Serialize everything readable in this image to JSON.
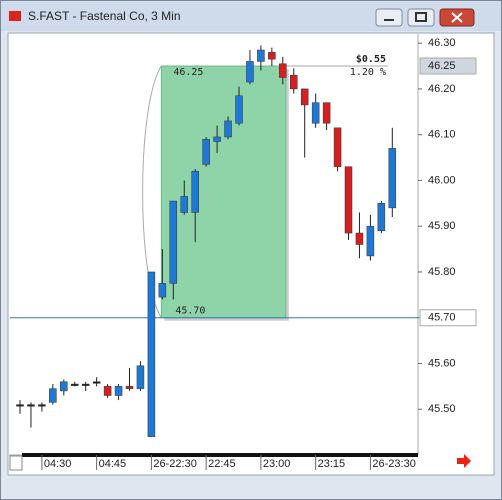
{
  "window": {
    "title": "S.FAST - Fastenal Co, 3 Min"
  },
  "chart_data": {
    "type": "candlestick",
    "categories": [
      null,
      null,
      "04:30",
      null,
      null,
      null,
      null,
      "04:45",
      null,
      null,
      null,
      null,
      "26-22:30",
      null,
      null,
      null,
      null,
      "22:45",
      null,
      null,
      null,
      null,
      "23:00",
      null,
      null,
      null,
      null,
      "23:15",
      null,
      null,
      null,
      null,
      "26-23:30",
      null,
      null
    ],
    "open": [
      45.51,
      45.51,
      45.51,
      45.515,
      45.54,
      45.555,
      45.555,
      45.56,
      45.55,
      45.53,
      45.55,
      45.545,
      45.44,
      45.745,
      45.775,
      45.93,
      45.93,
      46.035,
      46.085,
      46.095,
      46.125,
      46.215,
      46.26,
      46.28,
      46.255,
      46.23,
      46.2,
      46.125,
      46.17,
      46.115,
      46.03,
      45.885,
      45.835,
      45.89,
      45.94
    ],
    "close": [
      45.51,
      45.51,
      45.51,
      45.545,
      45.56,
      45.555,
      45.555,
      45.56,
      45.53,
      45.55,
      45.545,
      45.595,
      45.8,
      45.775,
      45.955,
      45.965,
      46.02,
      46.09,
      46.095,
      46.13,
      46.185,
      46.26,
      46.285,
      46.265,
      46.225,
      46.2,
      46.165,
      46.17,
      46.125,
      46.03,
      45.885,
      45.86,
      45.9,
      45.95,
      46.07
    ],
    "high": [
      45.52,
      45.515,
      45.515,
      45.555,
      45.565,
      45.56,
      45.56,
      45.57,
      45.555,
      45.555,
      45.59,
      45.605,
      45.8,
      45.85,
      45.955,
      46.0,
      46.025,
      46.095,
      46.12,
      46.14,
      46.205,
      46.285,
      46.295,
      46.29,
      46.27,
      46.245,
      46.2,
      46.19,
      46.17,
      46.115,
      46.03,
      45.93,
      45.925,
      45.955,
      46.115
    ],
    "low": [
      45.49,
      45.46,
      45.495,
      45.51,
      45.53,
      45.55,
      45.54,
      45.55,
      45.525,
      45.52,
      45.54,
      45.54,
      45.44,
      45.74,
      45.74,
      45.925,
      45.865,
      46.03,
      46.06,
      46.09,
      46.12,
      46.21,
      46.24,
      46.25,
      46.21,
      46.19,
      46.05,
      46.115,
      46.11,
      46.02,
      45.87,
      45.83,
      45.825,
      45.885,
      45.92
    ],
    "up_color": "#1f78d4",
    "down_color": "#d32020",
    "doji_color": "#222222",
    "ylim": [
      45.4,
      46.32
    ],
    "yticks": [
      {
        "value": 45.5,
        "label": "45.50"
      },
      {
        "value": 45.6,
        "label": "45.60"
      },
      {
        "value": 45.7,
        "label": "45.70"
      },
      {
        "value": 45.8,
        "label": "45.80"
      },
      {
        "value": 45.9,
        "label": "45.90"
      },
      {
        "value": 46.0,
        "label": "46.00"
      },
      {
        "value": 46.1,
        "label": "46.10"
      },
      {
        "value": 46.2,
        "label": "46.20"
      },
      {
        "value": 46.3,
        "label": "46.30"
      }
    ],
    "price_tags": [
      {
        "value": 46.25,
        "label": "46.25"
      },
      {
        "value": 45.7,
        "label": "45.70"
      }
    ],
    "measure": {
      "high": {
        "value": 46.25,
        "label": "46.25"
      },
      "low": {
        "value": 45.7,
        "label": "45.70"
      },
      "change": {
        "value": 0.55,
        "label": "$0.55"
      },
      "percent": {
        "value": 1.2,
        "label": "1.20 %"
      },
      "color": "#8fd4a8"
    }
  }
}
